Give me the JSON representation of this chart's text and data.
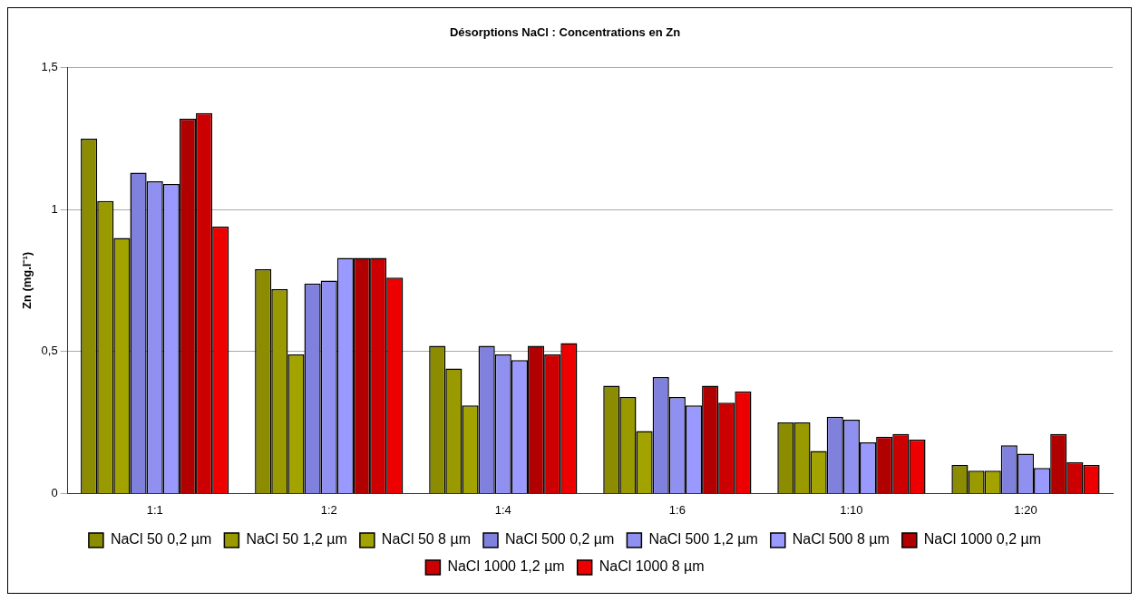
{
  "chart_data": {
    "type": "bar",
    "title": "Désorptions NaCl : Concentrations en Zn",
    "ylabel": "Zn (mg.l⁻¹)",
    "categories": [
      "1:1",
      "1:2",
      "1:4",
      "1:6",
      "1:10",
      "1:20"
    ],
    "series": [
      {
        "name": "NaCl 50 0,2 µm",
        "color": "#8c8c00",
        "values": [
          1.25,
          0.79,
          0.52,
          0.38,
          0.25,
          0.1
        ]
      },
      {
        "name": "NaCl 50 1,2 µm",
        "color": "#999900",
        "values": [
          1.03,
          0.72,
          0.44,
          0.34,
          0.25,
          0.08
        ]
      },
      {
        "name": "NaCl 50 8 µm",
        "color": "#a3a300",
        "values": [
          0.9,
          0.49,
          0.31,
          0.22,
          0.15,
          0.08
        ]
      },
      {
        "name": "NaCl 500 0,2 µm",
        "color": "#8080dd",
        "values": [
          1.13,
          0.74,
          0.52,
          0.41,
          0.27,
          0.17
        ]
      },
      {
        "name": "NaCl 500 1,2 µm",
        "color": "#9090f0",
        "values": [
          1.1,
          0.75,
          0.49,
          0.34,
          0.26,
          0.14
        ]
      },
      {
        "name": "NaCl 500 8 µm",
        "color": "#9999ff",
        "values": [
          1.09,
          0.83,
          0.47,
          0.31,
          0.18,
          0.09
        ]
      },
      {
        "name": "NaCl 1000 0,2 µm",
        "color": "#b00000",
        "values": [
          1.32,
          0.83,
          0.52,
          0.38,
          0.2,
          0.21
        ]
      },
      {
        "name": "NaCl 1000 1,2 µm",
        "color": "#cc0000",
        "values": [
          1.34,
          0.83,
          0.49,
          0.32,
          0.21,
          0.11
        ]
      },
      {
        "name": "NaCl 1000 8 µm",
        "color": "#ee0000",
        "values": [
          0.94,
          0.76,
          0.53,
          0.36,
          0.19,
          0.1
        ]
      }
    ],
    "ylim": [
      0,
      1.5
    ],
    "yticks": [
      0,
      {
        "value": 0.5,
        "label": "0,5"
      },
      1,
      {
        "value": 1.5,
        "label": "1,5"
      }
    ],
    "grid": "y",
    "legend": "bottom"
  }
}
